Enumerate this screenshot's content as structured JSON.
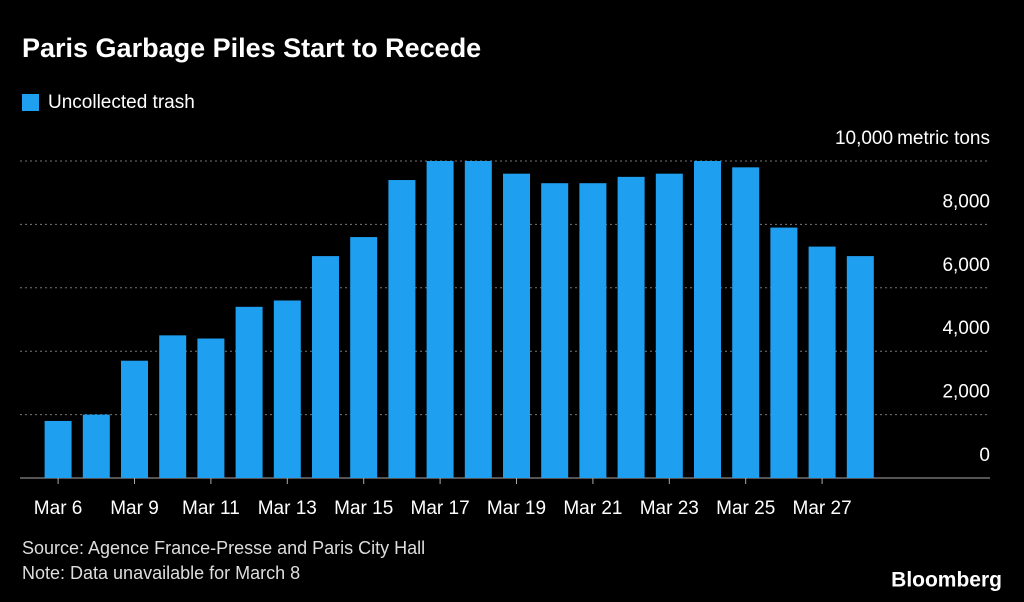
{
  "chart_data": {
    "type": "bar",
    "title": "Paris Garbage Piles Start to Recede",
    "legend": "Uncollected trash",
    "y_unit": "metric tons",
    "source": "Source: Agence France-Presse and Paris City Hall",
    "note": "Note: Data unavailable for March 8",
    "brand": "Bloomberg",
    "color": "#1f9ff0",
    "categories": [
      "Mar 6",
      null,
      "Mar 9",
      null,
      "Mar 11",
      null,
      "Mar 13",
      null,
      "Mar 15",
      null,
      "Mar 17",
      null,
      "Mar 19",
      null,
      "Mar 21",
      null,
      "Mar 23",
      null,
      "Mar 25",
      null,
      "Mar 27",
      null
    ],
    "values": [
      1800,
      2000,
      3700,
      4500,
      4400,
      5400,
      5600,
      7000,
      7600,
      9400,
      10000,
      10000,
      9600,
      9300,
      9300,
      9500,
      9600,
      10000,
      9800,
      7900,
      7300,
      7000
    ],
    "ylim": [
      0,
      10000
    ],
    "yticks": [
      0,
      {
        "value": 2000,
        "label": "2,000"
      },
      {
        "value": 4000,
        "label": "4,000"
      },
      {
        "value": 6000,
        "label": "6,000"
      },
      {
        "value": 8000,
        "label": "8,000"
      },
      {
        "value": 10000,
        "label": "10,000"
      }
    ],
    "grid": true
  }
}
